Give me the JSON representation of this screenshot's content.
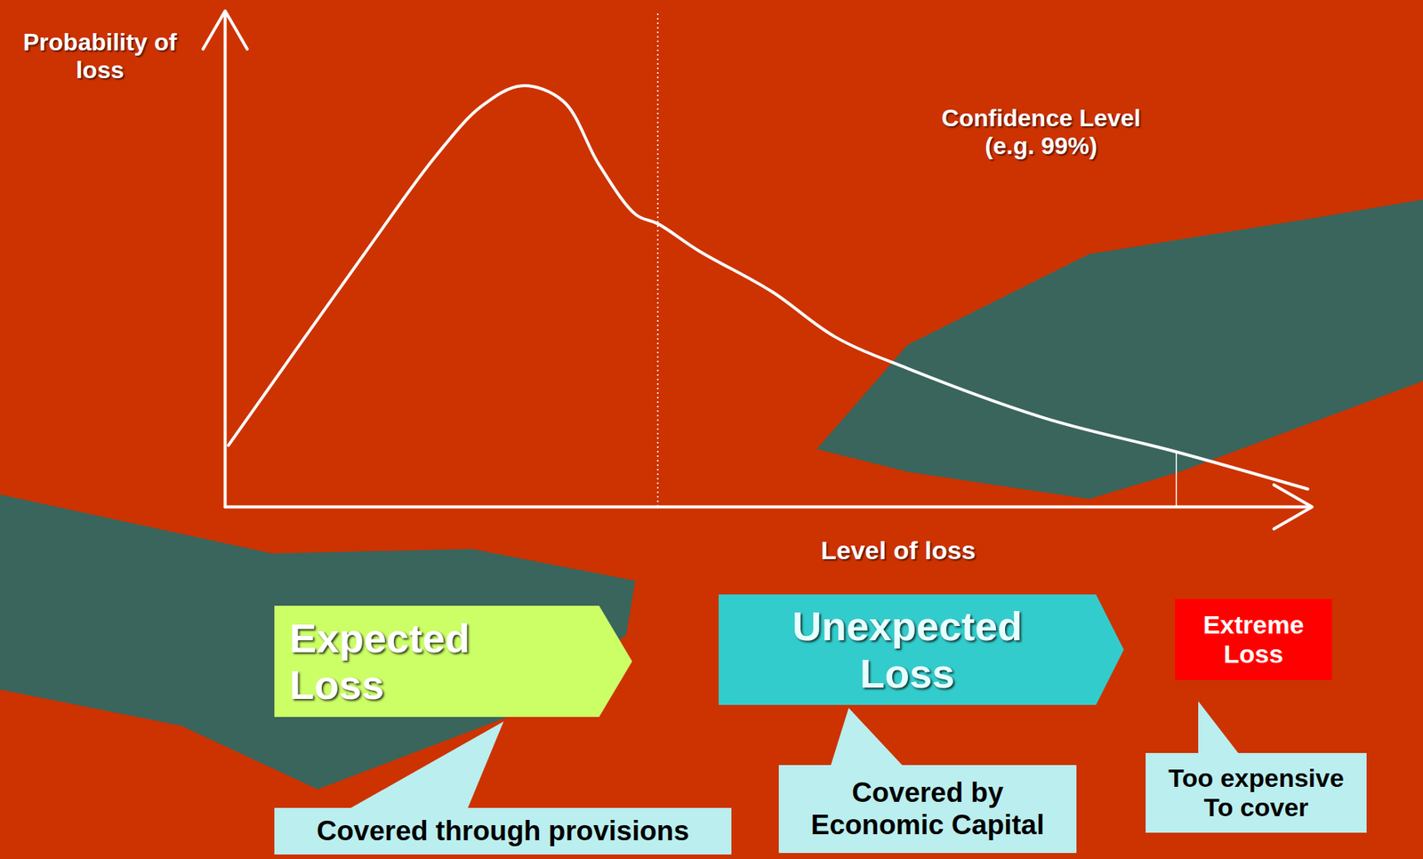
{
  "chart_data": {
    "type": "line",
    "y_label": "Probability of\nloss",
    "x_label": "Level of loss",
    "tick_labels": false,
    "xlim": [
      0,
      100
    ],
    "ylim": [
      0,
      100
    ],
    "xticks": [],
    "yticks": [],
    "color": "#ffffff",
    "x": [
      0.3,
      12.7,
      19.4,
      23.6,
      27.3,
      31.1,
      34.4,
      37.8,
      39.8,
      43.6,
      50.3,
      56.1,
      62.8,
      75.4,
      87.5,
      99.6
    ],
    "values": [
      12.4,
      50.7,
      70.8,
      80.8,
      84.9,
      81.8,
      69.0,
      58.9,
      57.1,
      51.6,
      43.4,
      34.3,
      27.9,
      17.9,
      11.1,
      3.6
    ],
    "reference_lines": [
      {
        "x": 39.8,
        "line_style": "dotted"
      },
      {
        "x": 87.5,
        "y": 11.1,
        "line_style": "solid"
      }
    ],
    "annotations": [
      {
        "text": "Confidence Level\n(e.g. 99%)"
      }
    ],
    "segments": [
      {
        "label": "Expected\nLoss",
        "note": "Covered through provisions",
        "color": "#ccff66"
      },
      {
        "label": "Unexpected\nLoss",
        "note": "Covered by\nEconomic Capital",
        "color": "#33cccc"
      },
      {
        "label": "Extreme\nLoss",
        "note": "Too expensive\nTo cover",
        "color": "#ff0000"
      }
    ]
  }
}
